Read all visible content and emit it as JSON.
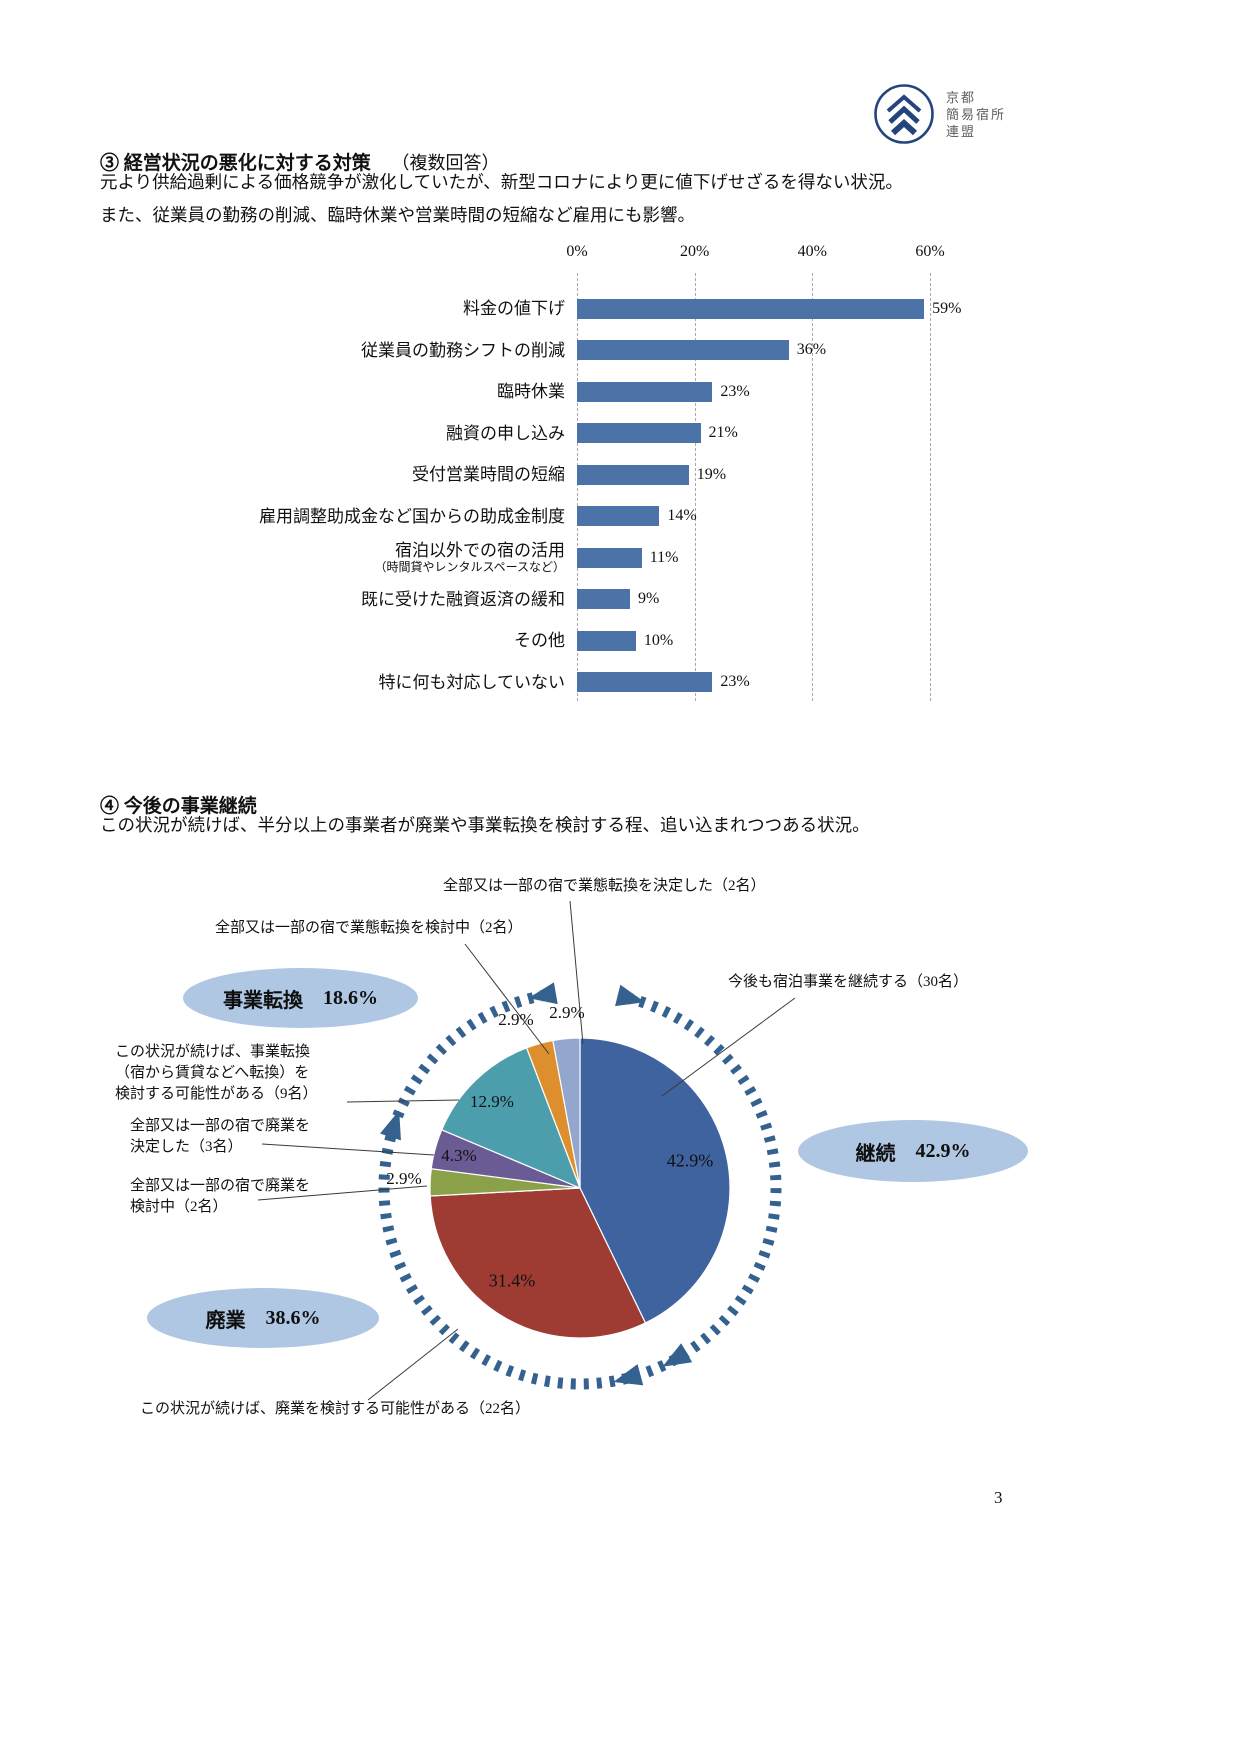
{
  "page": {
    "number": "3"
  },
  "logo": {
    "org_lines": [
      "京都",
      "簡易宿所",
      "連盟"
    ]
  },
  "section3": {
    "heading_num": "③",
    "heading": "経営状況の悪化に対する対策",
    "heading_note": "（複数回答）",
    "paragraph": [
      "元より供給過剰による価格競争が激化していたが、新型コロナにより更に値下げせざるを得ない状況。",
      "また、従業員の勤務の削減、臨時休業や営業時間の短縮など雇用にも影響。"
    ]
  },
  "section4": {
    "heading_num": "④",
    "heading": "今後の事業継続",
    "paragraph": "この状況が続けば、半分以上の事業者が廃業や事業転換を検討する程、追い込まれつつある状況。"
  },
  "chart_data": [
    {
      "type": "bar",
      "orientation": "horizontal",
      "categories": [
        "料金の値下げ",
        "従業員の勤務シフトの削減",
        "臨時休業",
        "融資の申し込み",
        "受付営業時間の短縮",
        "雇用調整助成金など国からの助成金制度",
        "宿泊以外での宿の活用",
        "既に受けた融資返済の緩和",
        "その他",
        "特に何も対応していない"
      ],
      "sublabels": [
        null,
        null,
        null,
        null,
        null,
        null,
        "（時間貸やレンタルスペースなど）",
        null,
        null,
        null
      ],
      "values": [
        59,
        36,
        23,
        21,
        19,
        14,
        11,
        9,
        10,
        23
      ],
      "value_labels": [
        "59%",
        "36%",
        "23%",
        "21%",
        "19%",
        "14%",
        "11%",
        "9%",
        "10%",
        "23%"
      ],
      "xlim": [
        0,
        60
      ],
      "xticks": [
        "0%",
        "20%",
        "40%",
        "60%"
      ],
      "grid": "vertical-dashed",
      "bar_color": "#4C73A8"
    },
    {
      "type": "pie",
      "start_angle": "12-oclock-clockwise",
      "ring_color": "#35618F",
      "slices": [
        {
          "label": "今後も宿泊事業を継続する（30名）",
          "value": 42.9,
          "pct_label": "42.9%",
          "color": "#3E639E"
        },
        {
          "label": "この状況が続けば、廃業を検討する可能性がある（22名）",
          "value": 31.4,
          "pct_label": "31.4%",
          "color": "#9E3C34"
        },
        {
          "label": "全部又は一部の宿で廃業を検討中（2名）",
          "value": 2.9,
          "pct_label": "2.9%",
          "color": "#8AA14A"
        },
        {
          "label": "全部又は一部の宿で廃業を決定した（3名）",
          "value": 4.3,
          "pct_label": "4.3%",
          "color": "#6A5B94"
        },
        {
          "label": "この状況が続けば、事業転換（宿から賃貸などへ転換）を検討する可能性がある（9名）",
          "value": 12.9,
          "pct_label": "12.9%",
          "color": "#4D9EAD"
        },
        {
          "label": "全部又は一部の宿で業態転換を検討中（2名）",
          "value": 2.9,
          "pct_label": "2.9%",
          "color": "#DE8F2D"
        },
        {
          "label": "全部又は一部の宿で業態転換を決定した（2名）",
          "value": 2.9,
          "pct_label": "2.9%",
          "color": "#93A6CE"
        }
      ],
      "groups": [
        {
          "label": "事業転換",
          "pct": "18.6%"
        },
        {
          "label": "継続",
          "pct": "42.9%"
        },
        {
          "label": "廃業",
          "pct": "38.6%"
        }
      ]
    }
  ],
  "figure": {
    "callouts": {
      "top1": "全部又は一部の宿で業態転換を決定した（2名）",
      "top2": "全部又は一部の宿で業態転換を検討中（2名）",
      "right": "今後も宿泊事業を継続する（30名）",
      "left1": [
        "この状況が続けば、事業転換",
        "（宿から賃貸などへ転換）を",
        "検討する可能性がある（9名）"
      ],
      "left2": [
        "全部又は一部の宿で廃業を",
        "決定した（3名）"
      ],
      "left3": [
        "全部又は一部の宿で廃業を",
        "検討中（2名）"
      ],
      "bottom": "この状況が続けば、廃業を検討する可能性がある（22名）"
    },
    "ovals": [
      {
        "label": "事業転換",
        "pct": "18.6%"
      },
      {
        "label": "継続",
        "pct": "42.9%"
      },
      {
        "label": "廃業",
        "pct": "38.6%"
      }
    ]
  }
}
